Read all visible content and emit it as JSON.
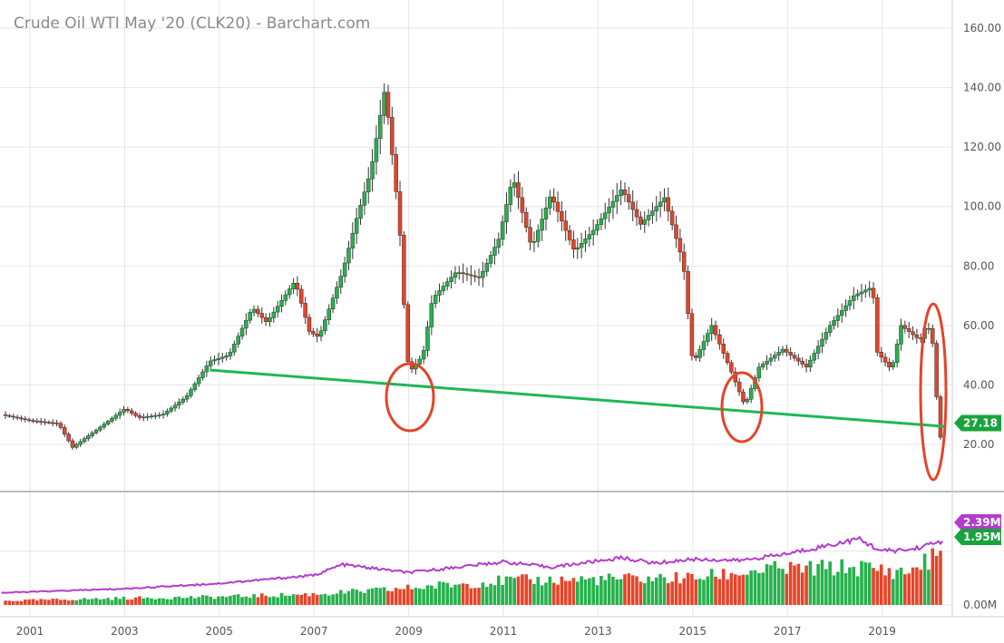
{
  "chart_data": {
    "type": "candlestick",
    "title": "Crude Oil WTI May '20 (CLK20) - Barchart.com",
    "x_ticks": [
      "2001",
      "2003",
      "2005",
      "2007",
      "2009",
      "2011",
      "2013",
      "2015",
      "2017",
      "2019"
    ],
    "price_panel": {
      "y_ticks": [
        "160.00",
        "140.00",
        "120.00",
        "100.00",
        "80.00",
        "60.00",
        "40.00",
        "20.00"
      ],
      "ylim": [
        0,
        165
      ],
      "last_price_label": "27.18",
      "last_price": 27.18,
      "candle_interval": "monthly",
      "approx_close_path": [
        {
          "date": "2000.4",
          "close": 30
        },
        {
          "date": "2001.0",
          "close": 28
        },
        {
          "date": "2001.6",
          "close": 27
        },
        {
          "date": "2001.9",
          "close": 19
        },
        {
          "date": "2002.5",
          "close": 26
        },
        {
          "date": "2003.0",
          "close": 32
        },
        {
          "date": "2003.3",
          "close": 29
        },
        {
          "date": "2003.8",
          "close": 30
        },
        {
          "date": "2004.3",
          "close": 36
        },
        {
          "date": "2004.8",
          "close": 48
        },
        {
          "date": "2005.2",
          "close": 50
        },
        {
          "date": "2005.7",
          "close": 66
        },
        {
          "date": "2006.0",
          "close": 61
        },
        {
          "date": "2006.6",
          "close": 75
        },
        {
          "date": "2006.9",
          "close": 58
        },
        {
          "date": "2007.1",
          "close": 56
        },
        {
          "date": "2007.6",
          "close": 78
        },
        {
          "date": "2007.9",
          "close": 96
        },
        {
          "date": "2008.2",
          "close": 112
        },
        {
          "date": "2008.5",
          "close": 140
        },
        {
          "date": "2008.8",
          "close": 95
        },
        {
          "date": "2008.9",
          "close": 67
        },
        {
          "date": "2009.0",
          "close": 44
        },
        {
          "date": "2009.3",
          "close": 50
        },
        {
          "date": "2009.5",
          "close": 69
        },
        {
          "date": "2010.0",
          "close": 78
        },
        {
          "date": "2010.5",
          "close": 76
        },
        {
          "date": "2010.9",
          "close": 89
        },
        {
          "date": "2011.2",
          "close": 110
        },
        {
          "date": "2011.6",
          "close": 86
        },
        {
          "date": "2012.0",
          "close": 104
        },
        {
          "date": "2012.5",
          "close": 85
        },
        {
          "date": "2012.9",
          "close": 92
        },
        {
          "date": "2013.5",
          "close": 106
        },
        {
          "date": "2013.9",
          "close": 94
        },
        {
          "date": "2014.4",
          "close": 103
        },
        {
          "date": "2014.8",
          "close": 81
        },
        {
          "date": "2015.0",
          "close": 47
        },
        {
          "date": "2015.4",
          "close": 60
        },
        {
          "date": "2015.8",
          "close": 45
        },
        {
          "date": "2016.1",
          "close": 33
        },
        {
          "date": "2016.4",
          "close": 46
        },
        {
          "date": "2016.9",
          "close": 52
        },
        {
          "date": "2017.4",
          "close": 46
        },
        {
          "date": "2017.9",
          "close": 60
        },
        {
          "date": "2018.4",
          "close": 70
        },
        {
          "date": "2018.8",
          "close": 73
        },
        {
          "date": "2018.9",
          "close": 51
        },
        {
          "date": "2019.2",
          "close": 45
        },
        {
          "date": "2019.4",
          "close": 60
        },
        {
          "date": "2019.8",
          "close": 55
        },
        {
          "date": "2019.95",
          "close": 61
        },
        {
          "date": "2020.1",
          "close": 52
        },
        {
          "date": "2020.2",
          "close": 20
        },
        {
          "date": "2020.3",
          "close": 27.18
        }
      ]
    },
    "volume_panel": {
      "y_ticks": [
        "0.00M"
      ],
      "volume_label": "1.95M",
      "volume_last": 1.95,
      "average_label": "2.39M",
      "average_last": 2.39,
      "volume_path": [
        {
          "date": "2000.4",
          "value": 0.15
        },
        {
          "date": "2003.0",
          "value": 0.25
        },
        {
          "date": "2005.0",
          "value": 0.3
        },
        {
          "date": "2007.0",
          "value": 0.4
        },
        {
          "date": "2008.5",
          "value": 0.55
        },
        {
          "date": "2009.5",
          "value": 0.7
        },
        {
          "date": "2011.0",
          "value": 0.9
        },
        {
          "date": "2013.0",
          "value": 0.95
        },
        {
          "date": "2015.0",
          "value": 1.0
        },
        {
          "date": "2016.5",
          "value": 1.3
        },
        {
          "date": "2018.5",
          "value": 1.4
        },
        {
          "date": "2019.5",
          "value": 1.2
        },
        {
          "date": "2020.3",
          "value": 1.95
        }
      ],
      "average_path": [
        {
          "date": "2000.4",
          "value": 0.45
        },
        {
          "date": "2003.0",
          "value": 0.6
        },
        {
          "date": "2005.0",
          "value": 0.8
        },
        {
          "date": "2007.0",
          "value": 1.1
        },
        {
          "date": "2007.6",
          "value": 1.5
        },
        {
          "date": "2009.0",
          "value": 1.2
        },
        {
          "date": "2011.0",
          "value": 1.6
        },
        {
          "date": "2012.0",
          "value": 1.4
        },
        {
          "date": "2013.5",
          "value": 1.75
        },
        {
          "date": "2014.2",
          "value": 1.55
        },
        {
          "date": "2015.0",
          "value": 1.7
        },
        {
          "date": "2016.0",
          "value": 1.65
        },
        {
          "date": "2017.0",
          "value": 1.9
        },
        {
          "date": "2018.5",
          "value": 2.45
        },
        {
          "date": "2019.0",
          "value": 2.0
        },
        {
          "date": "2019.6",
          "value": 2.05
        },
        {
          "date": "2020.3",
          "value": 2.39
        }
      ],
      "ylim": [
        0,
        3.0
      ]
    },
    "annotations": {
      "trendline": {
        "start": {
          "date": "2004.8",
          "value": 45
        },
        "end": {
          "date": "2020.35",
          "value": 26
        }
      },
      "circled_lows": [
        "2009",
        "2016",
        "2020"
      ]
    },
    "colors": {
      "up": "#26b14d",
      "down": "#e4452a",
      "trendline": "#1db954",
      "circle": "#e4452a",
      "average_line": "#b43ccc",
      "last_price_badge": "#1aa33c",
      "average_badge": "#b43ccc"
    }
  }
}
